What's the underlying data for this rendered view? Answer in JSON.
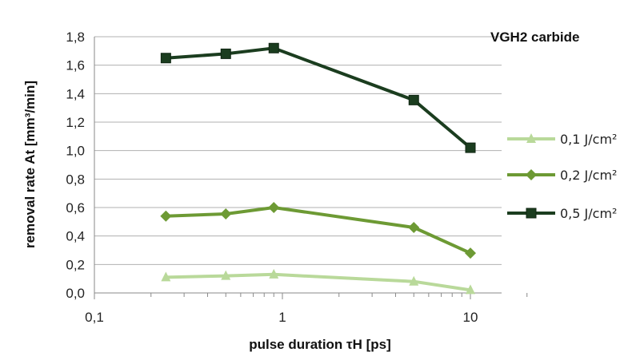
{
  "chart_data": {
    "type": "line",
    "title": "VGH2 carbide",
    "xlabel": "pulse duration τH [ps]",
    "ylabel": "removal rate At [mm³/min]",
    "xscale": "log",
    "xlim": [
      0.1,
      20
    ],
    "ylim": [
      0,
      1.8
    ],
    "xticks": [
      "0,1",
      "1",
      "10"
    ],
    "yticks": [
      "0,0",
      "0,2",
      "0,4",
      "0,6",
      "0,8",
      "1,0",
      "1,2",
      "1,4",
      "1,6",
      "1,8"
    ],
    "grid": "horizontal",
    "legend": "right",
    "series": [
      {
        "name": "0,1 J/cm²",
        "marker": "triangle",
        "color": "#b9d99a",
        "x": [
          0.24,
          0.5,
          0.9,
          5,
          10
        ],
        "y": [
          0.11,
          0.12,
          0.13,
          0.08,
          0.02
        ]
      },
      {
        "name": "0,2 J/cm²",
        "marker": "diamond",
        "color": "#6d9a34",
        "x": [
          0.24,
          0.5,
          0.9,
          5,
          10
        ],
        "y": [
          0.54,
          0.555,
          0.6,
          0.46,
          0.28
        ]
      },
      {
        "name": "0,5 J/cm²",
        "marker": "square",
        "color": "#1b3d1f",
        "x": [
          0.24,
          0.5,
          0.9,
          5,
          10
        ],
        "y": [
          1.65,
          1.68,
          1.72,
          1.355,
          1.02
        ]
      }
    ]
  }
}
